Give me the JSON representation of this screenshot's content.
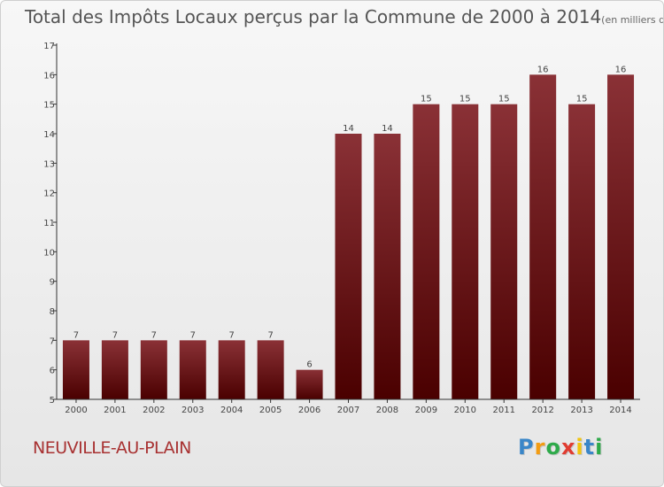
{
  "title": "Total des Impôts Locaux perçus par la Commune de 2000 à 2014",
  "title_unit": "(en milliers d'€)",
  "commune": "NEUVILLE-AU-PLAIN",
  "logo": {
    "letters": [
      "P",
      "r",
      "o",
      "x",
      "i",
      "t",
      "i"
    ],
    "colors": [
      "#3a86c8",
      "#f39c12",
      "#2eaa4a",
      "#e03c31",
      "#f1c40f",
      "#3a86c8",
      "#2eaa4a"
    ]
  },
  "colors": {
    "bar_top": "#8a3136",
    "bar_bottom": "#4a0000",
    "axis": "#333333"
  },
  "chart_data": {
    "type": "bar",
    "title": "Total des Impôts Locaux perçus par la Commune de 2000 à 2014",
    "xlabel": "",
    "ylabel": "en milliers d'€",
    "categories": [
      "2000",
      "2001",
      "2002",
      "2003",
      "2004",
      "2005",
      "2006",
      "2007",
      "2008",
      "2009",
      "2010",
      "2011",
      "2012",
      "2013",
      "2014"
    ],
    "values": [
      7,
      7,
      7,
      7,
      7,
      7,
      6,
      14,
      14,
      15,
      15,
      15,
      16,
      15,
      16
    ],
    "ylim": [
      5,
      17
    ],
    "yticks": [
      5,
      6,
      7,
      8,
      9,
      10,
      11,
      12,
      13,
      14,
      15,
      16,
      17
    ]
  }
}
